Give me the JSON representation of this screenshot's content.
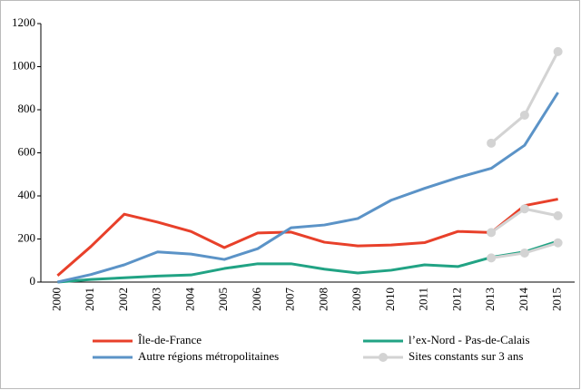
{
  "chart_data": {
    "type": "line",
    "categories": [
      "2000",
      "2001",
      "2002",
      "2003",
      "2004",
      "2005",
      "2006",
      "2007",
      "2008",
      "2009",
      "2010",
      "2011",
      "2012",
      "2013",
      "2014",
      "2015"
    ],
    "ylim": [
      0,
      1200
    ],
    "yticks": [
      0,
      200,
      400,
      600,
      800,
      1000,
      1200
    ],
    "legend": "bottom",
    "series": [
      {
        "name": "Île-de-France",
        "color": "#e8402a",
        "values": [
          30,
          165,
          315,
          278,
          235,
          160,
          228,
          232,
          185,
          168,
          172,
          183,
          235,
          230,
          355,
          385
        ]
      },
      {
        "name": "l’ex-Nord - Pas-de-Calais",
        "color": "#21a384",
        "values": [
          0,
          12,
          20,
          28,
          33,
          63,
          85,
          85,
          60,
          42,
          55,
          80,
          72,
          115,
          140,
          190
        ]
      },
      {
        "name": "Autre régions métropolitaines",
        "color": "#5b93c7",
        "values": [
          0,
          35,
          80,
          140,
          130,
          105,
          155,
          252,
          265,
          295,
          380,
          435,
          485,
          528,
          635,
          880
        ]
      },
      {
        "name": "Sites constants sur 3 ans",
        "color": "#d3d3d3",
        "marker": true,
        "values": [
          null,
          null,
          null,
          null,
          null,
          null,
          null,
          null,
          null,
          null,
          null,
          null,
          null,
          645,
          775,
          1070
        ]
      },
      {
        "color": "#d3d3d3",
        "marker": true,
        "values": [
          null,
          null,
          null,
          null,
          null,
          null,
          null,
          null,
          null,
          null,
          null,
          null,
          null,
          230,
          340,
          308
        ]
      },
      {
        "color": "#d3d3d3",
        "marker": true,
        "values": [
          null,
          null,
          null,
          null,
          null,
          null,
          null,
          null,
          null,
          null,
          null,
          null,
          null,
          112,
          135,
          182
        ]
      }
    ]
  }
}
